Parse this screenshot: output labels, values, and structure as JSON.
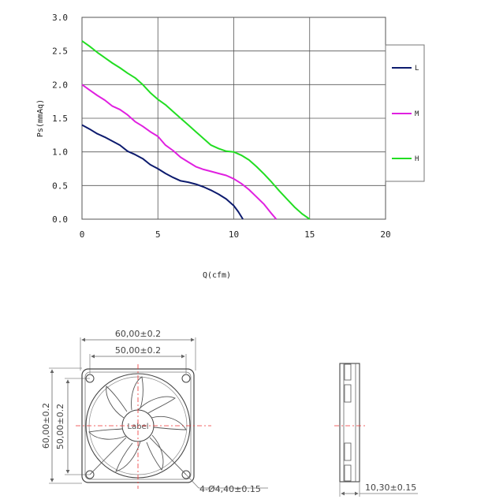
{
  "chart_data": {
    "type": "line",
    "xlabel": "Q(cfm)",
    "ylabel": "Ps(mmAq)",
    "xlim": [
      0,
      20
    ],
    "ylim": [
      0,
      3.0
    ],
    "x_ticks": [
      "0",
      "5",
      "10",
      "15",
      "20"
    ],
    "y_ticks": [
      "0.0",
      "0.5",
      "1.0",
      "1.5",
      "2.0",
      "2.5",
      "3.0"
    ],
    "grid": true,
    "legend_position": "right",
    "series": [
      {
        "name": "L",
        "color": "#0d1b6e",
        "x": [
          0,
          0.5,
          1.0,
          1.5,
          2.0,
          2.5,
          3.0,
          3.5,
          4.0,
          4.5,
          5.0,
          5.5,
          6.0,
          6.5,
          7.0,
          7.5,
          8.0,
          8.5,
          9.0,
          9.5,
          10.0,
          10.3,
          10.6
        ],
        "y": [
          1.4,
          1.34,
          1.27,
          1.22,
          1.16,
          1.1,
          1.01,
          0.96,
          0.9,
          0.81,
          0.75,
          0.68,
          0.62,
          0.57,
          0.55,
          0.52,
          0.48,
          0.43,
          0.37,
          0.3,
          0.2,
          0.11,
          0.0
        ]
      },
      {
        "name": "M",
        "color": "#e020e0",
        "x": [
          0,
          0.5,
          1.0,
          1.5,
          2.0,
          2.5,
          3.0,
          3.5,
          4.0,
          4.5,
          5.0,
          5.5,
          6.0,
          6.5,
          7.0,
          7.5,
          8.0,
          8.5,
          9.0,
          9.5,
          10.0,
          10.5,
          11.0,
          11.5,
          12.0,
          12.5,
          12.8
        ],
        "y": [
          2.0,
          1.92,
          1.84,
          1.77,
          1.68,
          1.63,
          1.55,
          1.45,
          1.38,
          1.3,
          1.23,
          1.1,
          1.02,
          0.92,
          0.85,
          0.78,
          0.74,
          0.71,
          0.68,
          0.65,
          0.6,
          0.53,
          0.44,
          0.33,
          0.22,
          0.08,
          0.0
        ]
      },
      {
        "name": "H",
        "color": "#22dd22",
        "x": [
          0,
          0.5,
          1.0,
          1.5,
          2.0,
          2.5,
          3.0,
          3.5,
          4.0,
          4.5,
          5.0,
          5.5,
          6.0,
          6.5,
          7.0,
          7.5,
          8.0,
          8.5,
          9.0,
          9.5,
          10.0,
          10.5,
          11.0,
          11.5,
          12.0,
          12.5,
          13.0,
          13.5,
          14.0,
          14.5,
          15.0
        ],
        "y": [
          2.65,
          2.57,
          2.48,
          2.4,
          2.32,
          2.25,
          2.17,
          2.1,
          2.0,
          1.88,
          1.78,
          1.7,
          1.6,
          1.5,
          1.4,
          1.3,
          1.2,
          1.1,
          1.05,
          1.01,
          1.0,
          0.95,
          0.88,
          0.78,
          0.67,
          0.55,
          0.42,
          0.3,
          0.18,
          0.08,
          0.0
        ]
      }
    ]
  },
  "drawing": {
    "front": {
      "width_outer": "60,00±0.2",
      "width_inner": "50,00±0.2",
      "height_outer": "60,00±0.2",
      "height_inner": "50,00±0.2",
      "hole_callout": "4-Ø4,40±0.15",
      "hub_label": "Label"
    },
    "side": {
      "thickness": "10,30±0.15"
    }
  }
}
